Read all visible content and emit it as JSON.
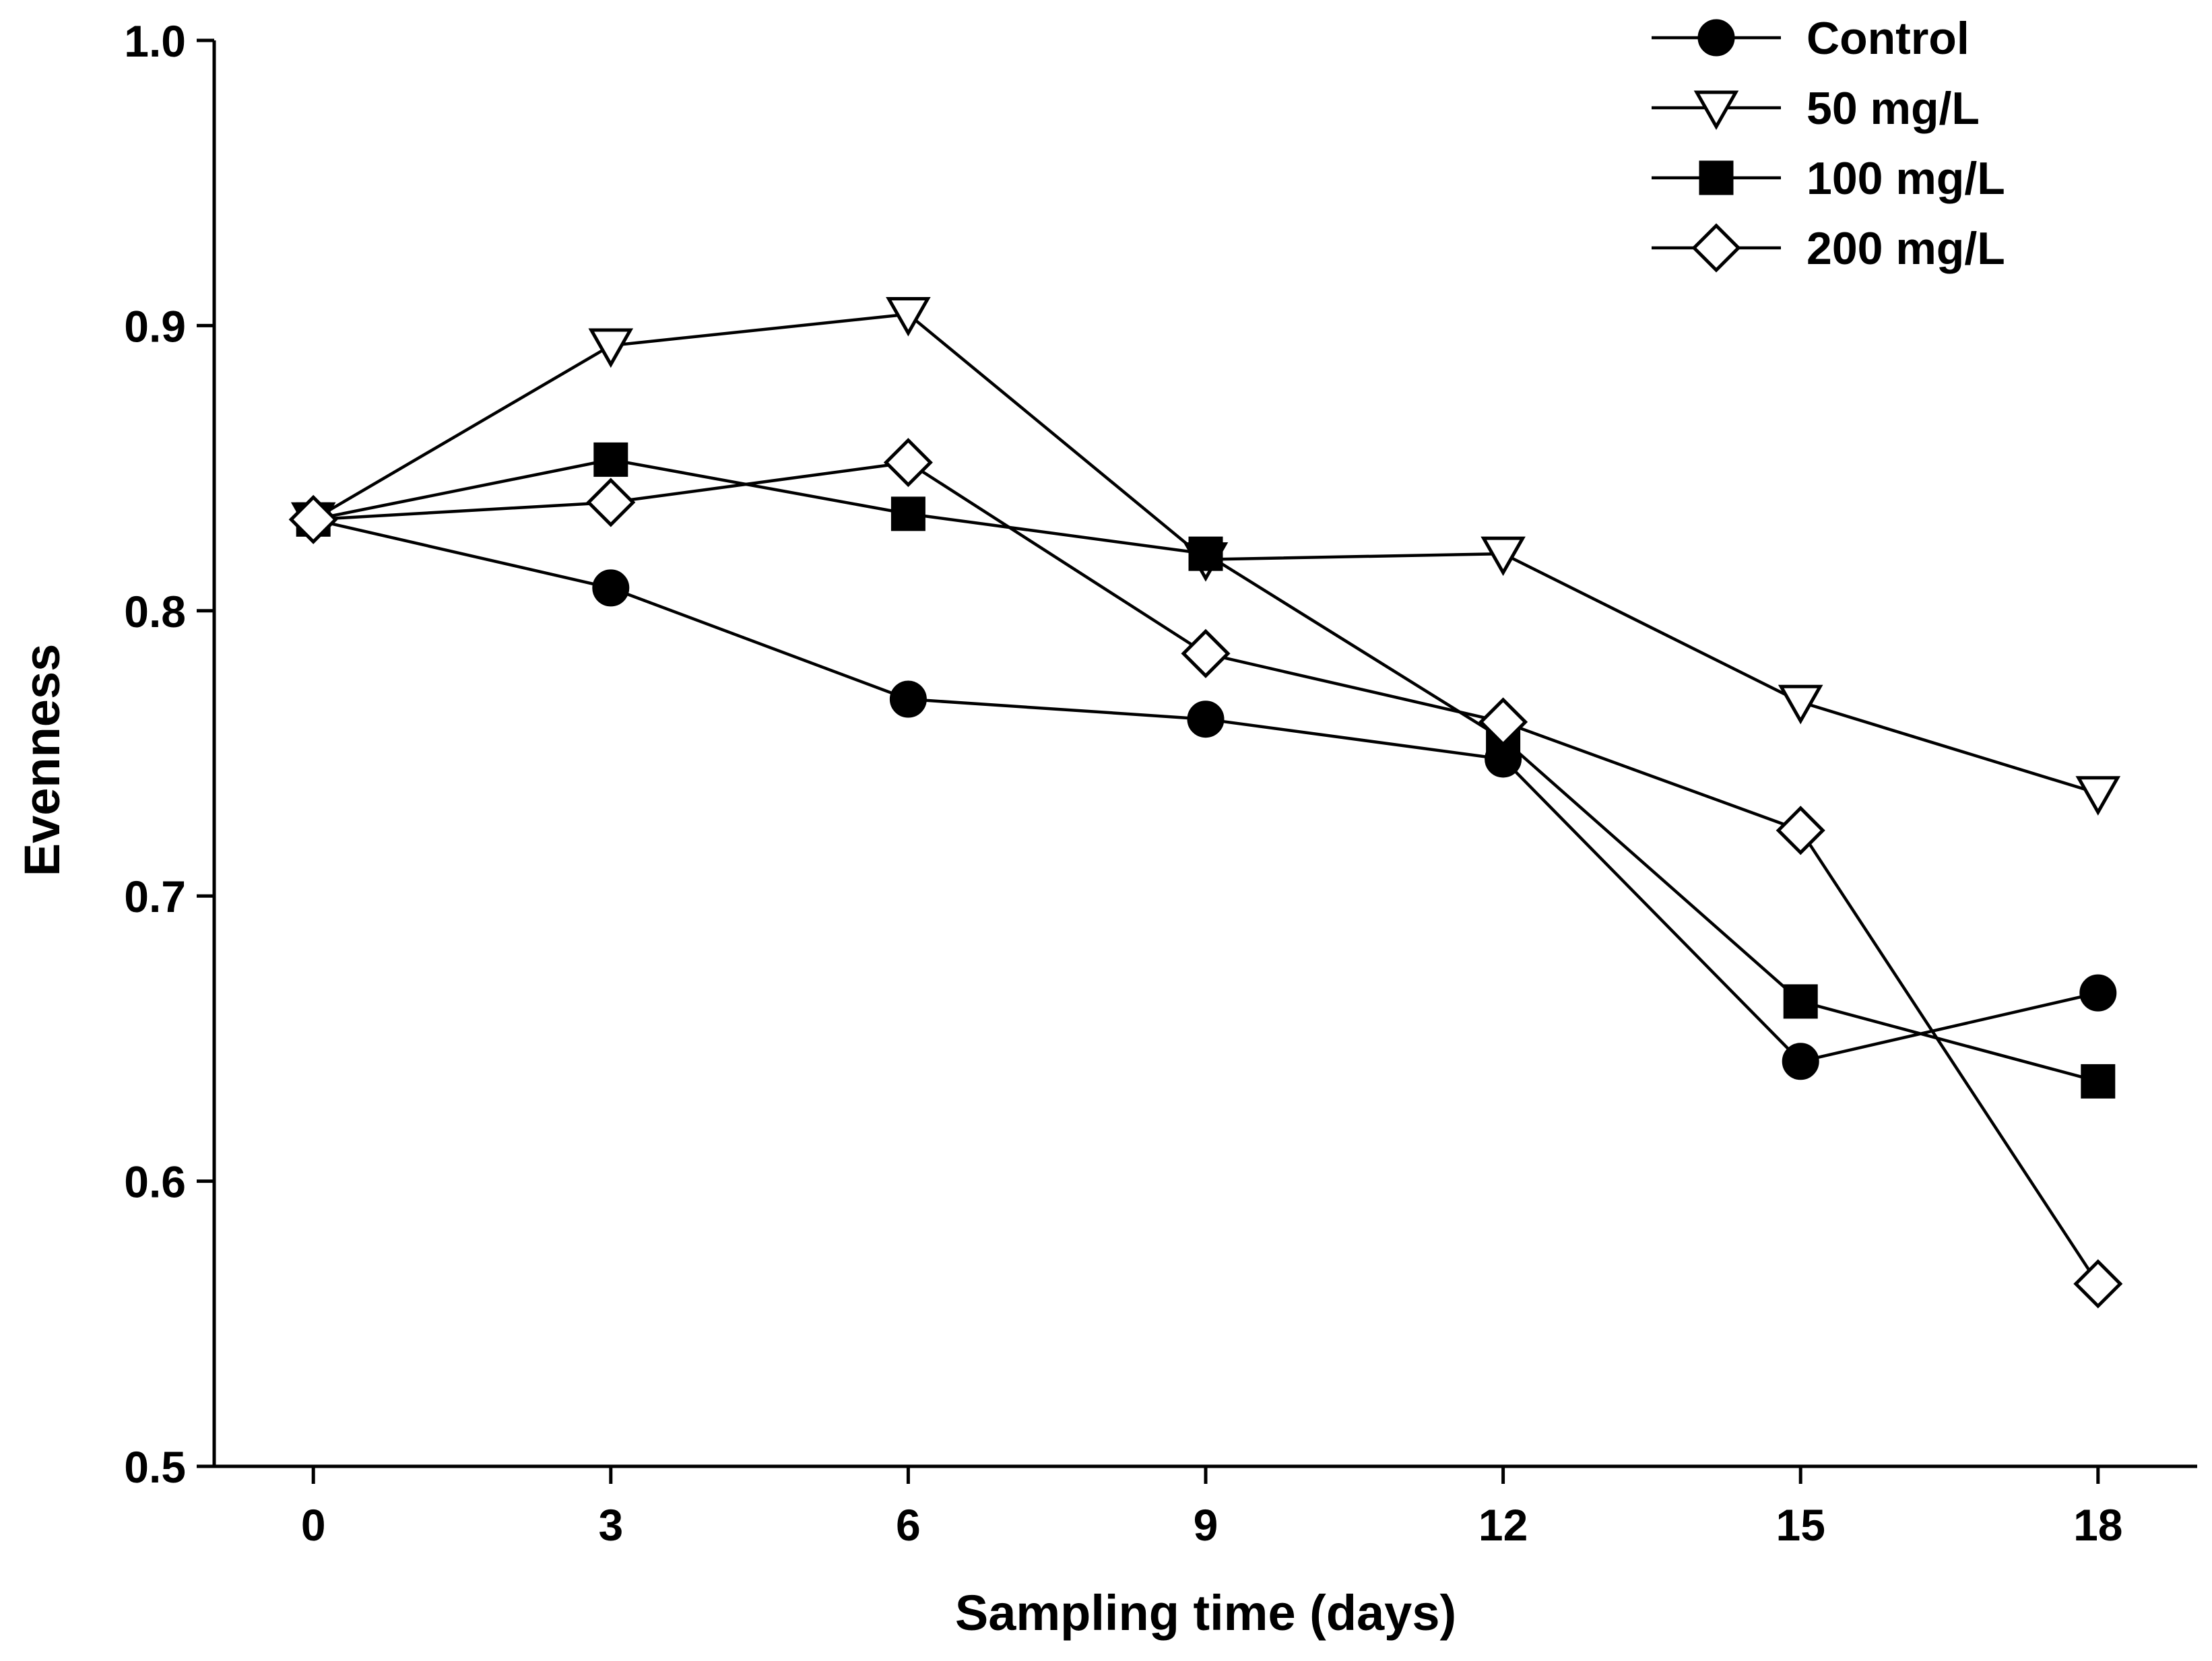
{
  "chart_data": {
    "type": "line",
    "title": "",
    "xlabel": "Sampling time (days)",
    "ylabel": "Evenness",
    "x": [
      0,
      3,
      6,
      9,
      12,
      15,
      18
    ],
    "xlim": [
      -1,
      19
    ],
    "ylim": [
      0.5,
      1.0
    ],
    "x_ticks": [
      "0",
      "3",
      "6",
      "9",
      "12",
      "15",
      "18"
    ],
    "y_ticks": [
      "0.5",
      "0.6",
      "0.7",
      "0.8",
      "0.9",
      "1.0"
    ],
    "grid": false,
    "legend_position": "top-right",
    "series": [
      {
        "name": "Control",
        "marker": "circle",
        "fill": "filled",
        "values": [
          0.832,
          0.808,
          0.769,
          0.762,
          0.748,
          0.642,
          0.666
        ]
      },
      {
        "name": "50 mg/L",
        "marker": "triangle-down",
        "fill": "open",
        "values": [
          0.832,
          0.893,
          0.904,
          0.818,
          0.82,
          0.768,
          0.736
        ]
      },
      {
        "name": "100 mg/L",
        "marker": "square",
        "fill": "filled",
        "values": [
          0.832,
          0.853,
          0.834,
          0.82,
          0.755,
          0.663,
          0.635
        ]
      },
      {
        "name": "200 mg/L",
        "marker": "diamond",
        "fill": "open",
        "values": [
          0.832,
          0.838,
          0.852,
          0.785,
          0.761,
          0.723,
          0.564
        ]
      }
    ]
  }
}
